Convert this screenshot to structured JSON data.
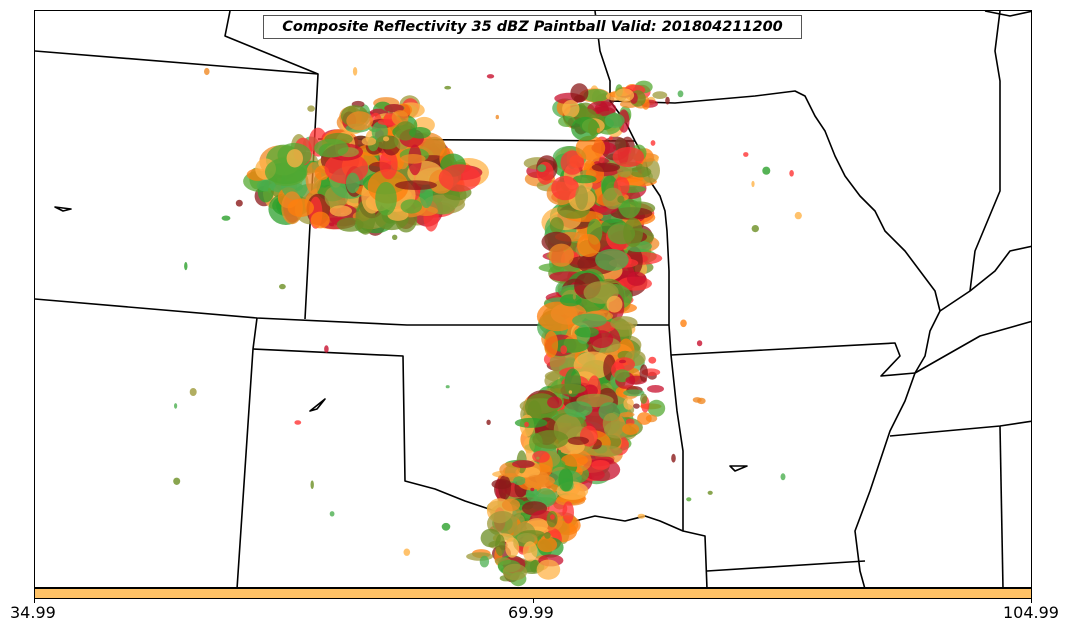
{
  "map": {
    "title": "Composite Reflectivity 35 dBZ Paintball Valid: 201804211200",
    "paintball_colors": [
      "#ff3333",
      "#ff7f0e",
      "#f08a24",
      "#c8102e",
      "#2ca02c",
      "#6b8e23",
      "#8b1a1a",
      "#ffb347",
      "#4caf50",
      "#9e9a3a",
      "#55aa33"
    ],
    "colorbar": {
      "color": "#ffc266",
      "ticks": [
        "34.99",
        "69.99",
        "104.99"
      ]
    }
  }
}
